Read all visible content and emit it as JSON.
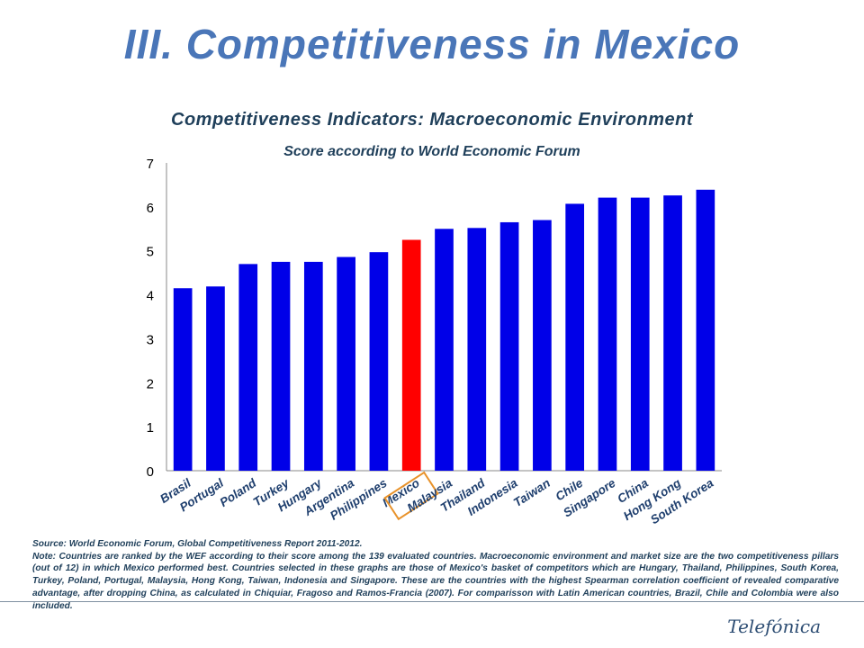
{
  "header": {
    "title": "III. Competitiveness in Mexico"
  },
  "chart_data": {
    "type": "bar",
    "title": "Competitiveness Indicators: Macroeconomic Environment",
    "subtitle": "Score according to World Economic Forum",
    "xlabel": "",
    "ylabel": "",
    "ylim": [
      0,
      7
    ],
    "yticks": [
      0,
      1,
      2,
      3,
      4,
      5,
      6,
      7
    ],
    "grid": false,
    "categories": [
      "Brasil",
      "Portugal",
      "Poland",
      "Turkey",
      "Hungary",
      "Argentina",
      "Philippines",
      "Mexico",
      "Malaysia",
      "Thailand",
      "Indonesia",
      "Taiwan",
      "Chile",
      "Singapore",
      "China",
      "Hong Kong",
      "South Korea"
    ],
    "values": [
      4.15,
      4.19,
      4.7,
      4.75,
      4.75,
      4.86,
      4.97,
      5.25,
      5.5,
      5.52,
      5.65,
      5.7,
      6.07,
      6.21,
      6.21,
      6.26,
      6.39
    ],
    "highlight": "Mexico",
    "colors": {
      "bar": "#0000e8",
      "highlight": "#ff0000",
      "highlight_box": "#e8922a"
    }
  },
  "footer": {
    "source": "Source: World Economic Forum, Global Competitiveness Report 2011-2012.",
    "note": "Note: Countries are ranked by the WEF according to their score among the 139 evaluated countries. Macroeconomic environment and market size are the two competitiveness pillars (out of 12) in which Mexico performed best. Countries selected in these graphs are those of Mexico's basket of competitors which are Hungary, Thailand, Philippines, South Korea, Turkey, Poland, Portugal, Malaysia, Hong Kong, Taiwan, Indonesia and Singapore. These are the countries with the highest Spearman correlation coefficient of revealed comparative advantage, after dropping China, as calculated in Chiquiar, Fragoso and Ramos-Francia (2007). For comparisson with Latin American countries, Brazil, Chile and Colombia were also included.",
    "logo": "Telefónica"
  }
}
